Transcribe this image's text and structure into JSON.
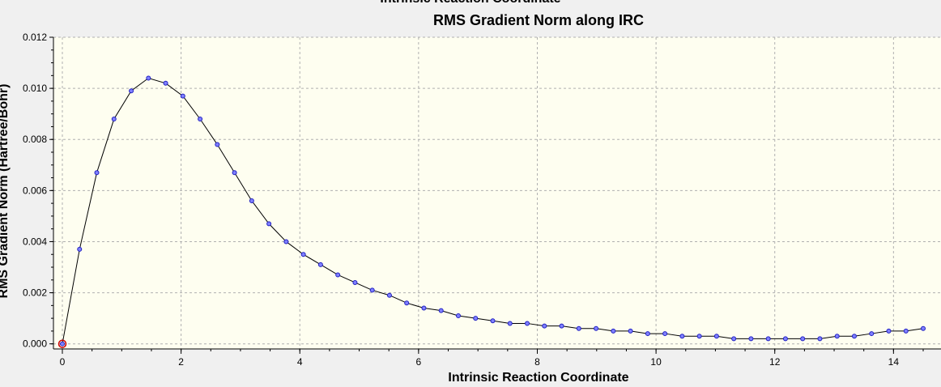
{
  "window": {
    "top_text": "Intrinsic Reaction Coordinate"
  },
  "colors": {
    "plot_bg": "#fefef0",
    "line": "#000000",
    "marker_stroke": "#2020c0",
    "marker_fill": "#8080ff",
    "highlight": "#cc0000",
    "grid": "#b0b0b0"
  },
  "chart_data": {
    "type": "line",
    "title": "RMS Gradient Norm along IRC",
    "xlabel": "Intrinsic Reaction Coordinate",
    "ylabel": "RMS Gradient Norm (Hartree/Bohr)",
    "xlim": [
      -0.15,
      14.8
    ],
    "ylim": [
      -0.0002,
      0.012
    ],
    "x_ticks": [
      "0",
      "2",
      "4",
      "6",
      "8",
      "10",
      "12",
      "14"
    ],
    "y_ticks": [
      "0.000",
      "0.002",
      "0.004",
      "0.006",
      "0.008",
      "0.010",
      "0.012"
    ],
    "grid": true,
    "highlighted_point_index": 0,
    "series": [
      {
        "x": [
          0,
          0.29,
          0.58,
          0.87,
          1.16,
          1.45,
          1.74,
          2.03,
          2.32,
          2.61,
          2.9,
          3.19,
          3.48,
          3.77,
          4.06,
          4.35,
          4.64,
          4.93,
          5.22,
          5.51,
          5.8,
          6.09,
          6.38,
          6.67,
          6.96,
          7.25,
          7.54,
          7.83,
          8.12,
          8.41,
          8.7,
          8.99,
          9.28,
          9.57,
          9.86,
          10.15,
          10.44,
          10.73,
          11.02,
          11.31,
          11.6,
          11.89,
          12.18,
          12.47,
          12.76,
          13.05,
          13.34,
          13.63,
          13.92,
          14.21,
          14.5
        ],
        "y": [
          0.0,
          0.0037,
          0.0067,
          0.0088,
          0.0099,
          0.0104,
          0.0102,
          0.0097,
          0.0088,
          0.0078,
          0.0067,
          0.0056,
          0.0047,
          0.004,
          0.0035,
          0.0031,
          0.0027,
          0.0024,
          0.0021,
          0.0019,
          0.0016,
          0.0014,
          0.0013,
          0.0011,
          0.001,
          0.0009,
          0.0008,
          0.0008,
          0.0007,
          0.0007,
          0.0006,
          0.0006,
          0.0005,
          0.0005,
          0.0004,
          0.0004,
          0.0003,
          0.0003,
          0.0003,
          0.0002,
          0.0002,
          0.0002,
          0.0002,
          0.0002,
          0.0002,
          0.0003,
          0.0003,
          0.0004,
          0.0005,
          0.0005,
          0.0006
        ]
      }
    ]
  }
}
